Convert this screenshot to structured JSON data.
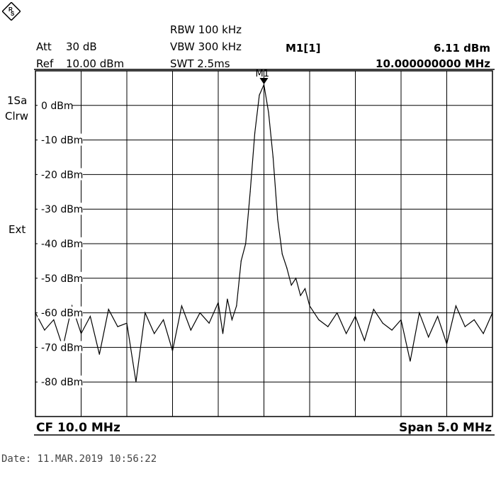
{
  "header": {
    "att_label": "Att",
    "att_value": "30 dB",
    "ref_label": "Ref",
    "ref_value": "10.00 dBm",
    "rbw": "RBW 100 kHz",
    "vbw": "VBW 300 kHz",
    "swt": "SWT 2.5ms",
    "marker_label": "M1[1]",
    "marker_level": "6.11 dBm",
    "marker_freq": "10.000000000 MHz"
  },
  "side": {
    "trace_mode_1": "1Sa",
    "trace_mode_2": "Clrw",
    "ext": "Ext"
  },
  "footer": {
    "cf": "CF 10.0 MHz",
    "span": "Span 5.0 MHz",
    "date": "Date: 11.MAR.2019  10:56:22"
  },
  "colors": {
    "trace": "#000000",
    "grid": "#000000",
    "background": "#ffffff"
  },
  "logo_icon": "rohde-schwarz-logo-icon",
  "chart_data": {
    "type": "line",
    "title": "",
    "xlabel": "",
    "ylabel": "",
    "x_unit": "MHz",
    "y_unit": "dBm",
    "xlim": [
      7.5,
      12.5
    ],
    "ylim": [
      -90,
      10
    ],
    "grid": true,
    "ytick_labels": [
      "0 dBm",
      "-10 dBm",
      "-20 dBm",
      "-30 dBm",
      "-40 dBm",
      "-50 dBm",
      "-60 dBm",
      "-70 dBm",
      "-80 dBm"
    ],
    "ytick_values": [
      0,
      -10,
      -20,
      -30,
      -40,
      -50,
      -60,
      -70,
      -80
    ],
    "marker": {
      "name": "M1",
      "x": 10.0,
      "y": 6.11
    },
    "series": [
      {
        "x": [
          7.5,
          7.6,
          7.7,
          7.8,
          7.9,
          8.0,
          8.1,
          8.2,
          8.3,
          8.4,
          8.5,
          8.6,
          8.7,
          8.8,
          8.9,
          9.0,
          9.1,
          9.2,
          9.3,
          9.4,
          9.5,
          9.55,
          9.6,
          9.65,
          9.7,
          9.75,
          9.8,
          9.85,
          9.9,
          9.95,
          10.0,
          10.05,
          10.1,
          10.15,
          10.2,
          10.25,
          10.3,
          10.35,
          10.4,
          10.45,
          10.5,
          10.6,
          10.7,
          10.8,
          10.9,
          11.0,
          11.1,
          11.2,
          11.3,
          11.4,
          11.5,
          11.6,
          11.7,
          11.8,
          11.9,
          12.0,
          12.1,
          12.2,
          12.3,
          12.4,
          12.5
        ],
        "values": [
          -60,
          -65,
          -62,
          -70,
          -58,
          -66,
          -61,
          -72,
          -59,
          -64,
          -63,
          -80,
          -60,
          -66,
          -62,
          -71,
          -58,
          -65,
          -60,
          -63,
          -57,
          -66,
          -56,
          -62,
          -58,
          -45,
          -40,
          -25,
          -8,
          3,
          6,
          -2,
          -15,
          -33,
          -43,
          -47,
          -52,
          -50,
          -55,
          -53,
          -58,
          -62,
          -64,
          -60,
          -66,
          -61,
          -68,
          -59,
          -63,
          -65,
          -62,
          -74,
          -60,
          -67,
          -61,
          -69,
          -58,
          -64,
          -62,
          -66,
          -60
        ]
      }
    ]
  }
}
